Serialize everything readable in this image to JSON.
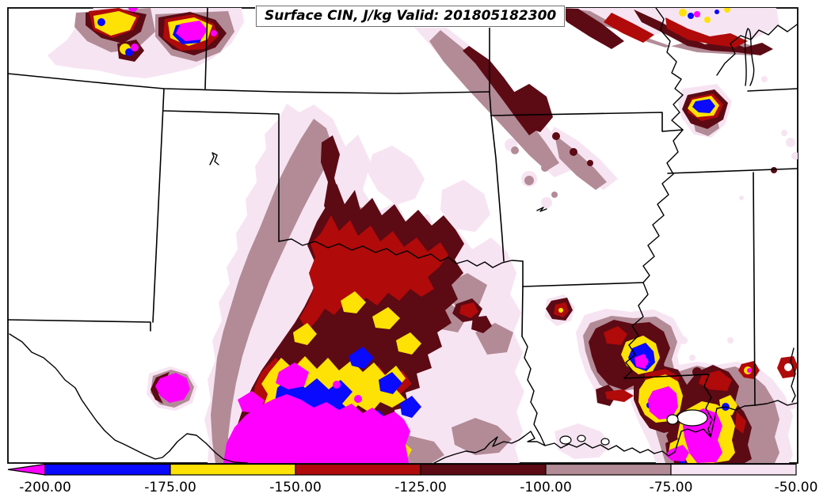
{
  "title": "Surface CIN, J/kg Valid: 201805182300",
  "colors": {
    "pale": "#f7e4f2",
    "mauve": "#b28b97",
    "maroon": "#5c0a14",
    "crimson": "#b00a0a",
    "yellow": "#ffe205",
    "blue": "#0a0aff",
    "magenta": "#ff00ff",
    "frame": "#000000",
    "background": "#ffffff"
  },
  "colorbar": {
    "tick_labels": [
      "-200.00",
      "-175.00",
      "-150.00",
      "-125.00",
      "-100.00",
      "-75.00",
      "-50.00"
    ],
    "segments": [
      {
        "from": -200,
        "to": -175,
        "color": "#0a0aff"
      },
      {
        "from": -175,
        "to": -150,
        "color": "#ffe205"
      },
      {
        "from": -150,
        "to": -125,
        "color": "#b00a0a"
      },
      {
        "from": -125,
        "to": -100,
        "color": "#5c0a14"
      },
      {
        "from": -100,
        "to": -75,
        "color": "#b28b97"
      },
      {
        "from": -75,
        "to": -50,
        "color": "#f7e4f2"
      }
    ],
    "under_arrow_color": "#ff00ff"
  },
  "chart_data": {
    "type": "heatmap",
    "title": "Surface CIN, J/kg Valid: 201805182300",
    "variable": "Surface CIN",
    "units": "J/kg",
    "valid_time": "201805182300",
    "levels": [
      -200,
      -175,
      -150,
      -125,
      -100,
      -75,
      -50
    ],
    "level_colors": [
      "#0a0aff",
      "#ffe205",
      "#b00a0a",
      "#5c0a14",
      "#b28b97",
      "#f7e4f2"
    ],
    "under_range_color": "#ff00ff",
    "legend_position": "bottom",
    "grid": false,
    "tick_labels": [
      "-200.00",
      "-175.00",
      "-150.00",
      "-125.00",
      "-100.00",
      "-75.00",
      "-50.00"
    ]
  }
}
